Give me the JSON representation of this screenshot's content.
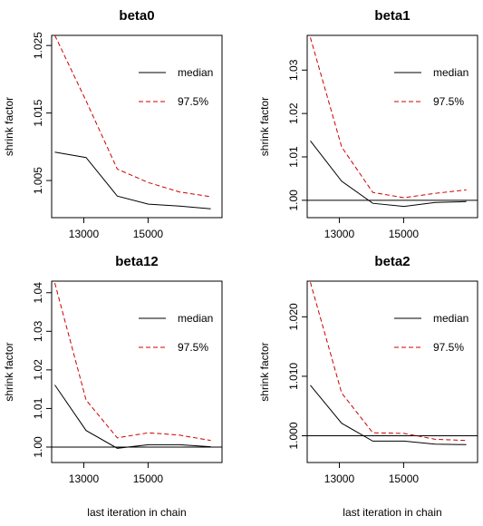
{
  "chart_data": [
    {
      "type": "line",
      "title": "beta0",
      "xlabel": "last iteration in chain",
      "ylabel": "shrink factor",
      "xlim": [
        12000,
        17300
      ],
      "ylim": [
        0.9995,
        1.0265
      ],
      "xticks": [
        13000,
        15000
      ],
      "yticks": [
        1.005,
        1.015,
        1.025
      ],
      "xtick_labels": [
        "13000",
        "15000"
      ],
      "ytick_labels": [
        "1.005",
        "1.015",
        "1.025"
      ],
      "hline": null,
      "legend": [
        "median",
        "97.5%"
      ],
      "legend_position": "top-right",
      "x": [
        12100,
        13070,
        14040,
        15010,
        15980,
        16950
      ],
      "series": [
        {
          "name": "median",
          "values": [
            1.0092,
            1.0084,
            1.0027,
            1.0015,
            1.0012,
            1.0008
          ],
          "color": "#000000",
          "dash": "solid"
        },
        {
          "name": "97.5%",
          "values": [
            1.0265,
            1.0168,
            1.0067,
            1.0047,
            1.0033,
            1.0026
          ],
          "color": "#cc0000",
          "dash": "dashed"
        }
      ]
    },
    {
      "type": "line",
      "title": "beta1",
      "xlabel": "last iteration in chain",
      "ylabel": "shrink factor",
      "xlim": [
        12000,
        17300
      ],
      "ylim": [
        0.996,
        1.038
      ],
      "xticks": [
        13000,
        15000
      ],
      "yticks": [
        1.0,
        1.01,
        1.02,
        1.03
      ],
      "xtick_labels": [
        "13000",
        "15000"
      ],
      "ytick_labels": [
        "1.00",
        "1.01",
        "1.02",
        "1.03"
      ],
      "hline": 1,
      "legend": [
        "median",
        "97.5%"
      ],
      "legend_position": "top-right",
      "x": [
        12100,
        13070,
        14040,
        15010,
        15980,
        16950
      ],
      "series": [
        {
          "name": "median",
          "values": [
            1.0137,
            1.0044,
            0.9993,
            0.9986,
            0.9995,
            0.9997
          ],
          "color": "#000000",
          "dash": "solid"
        },
        {
          "name": "97.5%",
          "values": [
            1.0375,
            1.0123,
            1.0018,
            1.0006,
            1.0016,
            1.0024
          ],
          "color": "#cc0000",
          "dash": "dashed"
        }
      ]
    },
    {
      "type": "line",
      "title": "beta12",
      "xlabel": "last iteration in chain",
      "ylabel": "shrink factor",
      "xlim": [
        12000,
        17300
      ],
      "ylim": [
        0.996,
        1.043
      ],
      "xticks": [
        13000,
        15000
      ],
      "yticks": [
        1.0,
        1.01,
        1.02,
        1.03,
        1.04
      ],
      "xtick_labels": [
        "13000",
        "15000"
      ],
      "ytick_labels": [
        "1.00",
        "1.01",
        "1.02",
        "1.03",
        "1.04"
      ],
      "hline": 1,
      "legend": [
        "median",
        "97.5%"
      ],
      "legend_position": "top-right",
      "x": [
        12100,
        13070,
        14040,
        15010,
        15980,
        16950
      ],
      "series": [
        {
          "name": "median",
          "values": [
            1.0161,
            1.0043,
            0.9997,
            1.0006,
            1.0006,
            1.0001
          ],
          "color": "#000000",
          "dash": "solid"
        },
        {
          "name": "97.5%",
          "values": [
            1.0425,
            1.0122,
            1.0024,
            1.0037,
            1.0031,
            1.0017
          ],
          "color": "#cc0000",
          "dash": "dashed"
        }
      ]
    },
    {
      "type": "line",
      "title": "beta2",
      "xlabel": "last iteration in chain",
      "ylabel": "shrink factor",
      "xlim": [
        12000,
        17300
      ],
      "ylim": [
        0.9955,
        1.026
      ],
      "xticks": [
        13000,
        15000
      ],
      "yticks": [
        1.0,
        1.01,
        1.02
      ],
      "xtick_labels": [
        "13000",
        "15000"
      ],
      "ytick_labels": [
        "1.000",
        "1.010",
        "1.020"
      ],
      "hline": 1,
      "legend": [
        "median",
        "97.5%"
      ],
      "legend_position": "top-right",
      "x": [
        12100,
        13070,
        14040,
        15010,
        15980,
        16950
      ],
      "series": [
        {
          "name": "median",
          "values": [
            1.0085,
            1.0021,
            0.9991,
            0.9991,
            0.9986,
            0.9985
          ],
          "color": "#000000",
          "dash": "solid"
        },
        {
          "name": "97.5%",
          "values": [
            1.0258,
            1.0072,
            1.0005,
            1.0004,
            0.9994,
            0.9992
          ],
          "color": "#cc0000",
          "dash": "dashed"
        }
      ]
    }
  ]
}
